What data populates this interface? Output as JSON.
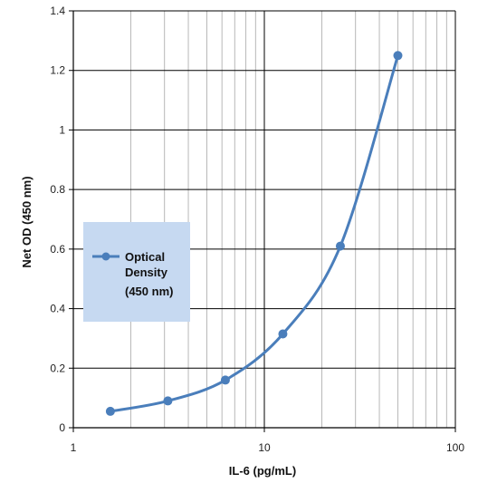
{
  "colors": {
    "series": "#4a7ebb",
    "legend_bg": "#c6d9f1",
    "grid_major": "#000000",
    "grid_minor": "#b8b8b8"
  },
  "chart_data": {
    "type": "line",
    "title": "",
    "xlabel": "IL-6 (pg/mL)",
    "ylabel": "Net OD (450 nm)",
    "x_scale": "log",
    "xlim": [
      1,
      100
    ],
    "ylim": [
      0,
      1.4
    ],
    "x_ticks": [
      "1",
      "10",
      "100"
    ],
    "y_ticks": [
      "0",
      "0.2",
      "0.4",
      "0.6",
      "0.8",
      "1",
      "1.2",
      "1.4"
    ],
    "grid": true,
    "legend_position": "left",
    "series": [
      {
        "name": "Optical Density (450 nm)",
        "legend_lines": [
          "Optical",
          "Density",
          "(450 nm)"
        ],
        "x": [
          1.5625,
          3.125,
          6.25,
          12.5,
          25,
          50
        ],
        "y": [
          0.055,
          0.09,
          0.16,
          0.315,
          0.61,
          1.25
        ]
      }
    ]
  }
}
